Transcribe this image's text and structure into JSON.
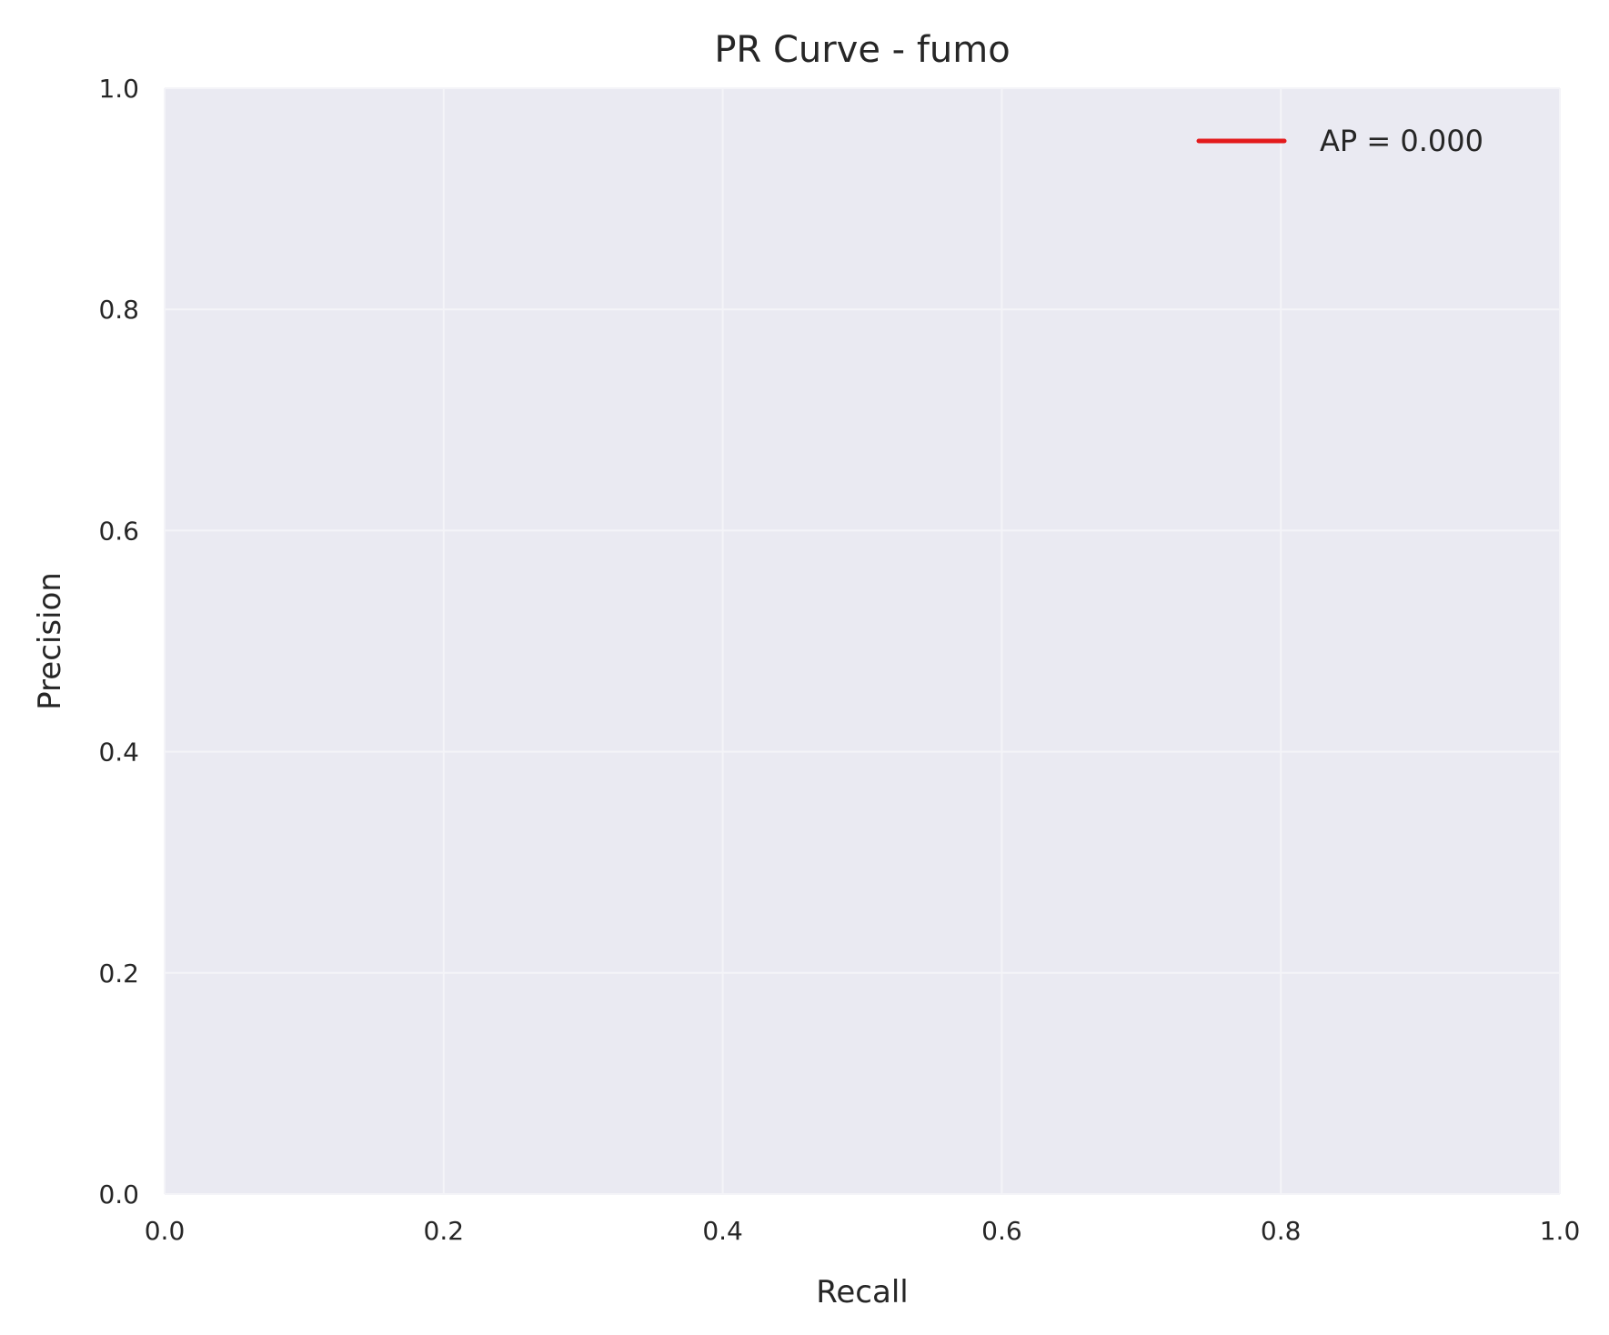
{
  "chart_data": {
    "type": "line",
    "title": "PR Curve - fumo",
    "xlabel": "Recall",
    "ylabel": "Precision",
    "xlim": [
      0.0,
      1.0
    ],
    "ylim": [
      0.0,
      1.0
    ],
    "xticks": [
      "0.0",
      "0.2",
      "0.4",
      "0.6",
      "0.8",
      "1.0"
    ],
    "yticks": [
      "0.0",
      "0.2",
      "0.4",
      "0.6",
      "0.8",
      "1.0"
    ],
    "grid": true,
    "legend_position": "top-right",
    "background_color": "#eaeaf2",
    "grid_color": "#f4f4f8",
    "series": [
      {
        "name": "AP = 0.000",
        "color": "#e31a1c",
        "x": [],
        "y": []
      }
    ]
  }
}
